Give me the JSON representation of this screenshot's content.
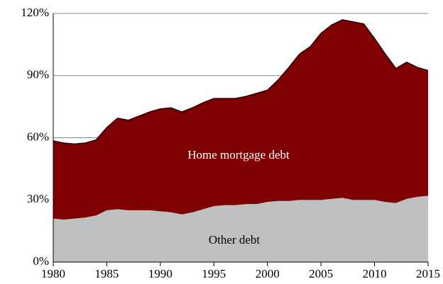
{
  "chart_data": {
    "type": "stacked_area",
    "x": [
      1980,
      1981,
      1982,
      1983,
      1984,
      1985,
      1986,
      1987,
      1988,
      1989,
      1990,
      1991,
      1992,
      1993,
      1994,
      1995,
      1996,
      1997,
      1998,
      1999,
      2000,
      2001,
      2002,
      2003,
      2004,
      2005,
      2006,
      2007,
      2008,
      2009,
      2010,
      2011,
      2012,
      2013,
      2014,
      2015
    ],
    "series": [
      {
        "name": "Other debt",
        "color": "#c0c0c0",
        "values": [
          21,
          20.5,
          21,
          21.5,
          22.5,
          25,
          25.5,
          25,
          25,
          25,
          24.5,
          24,
          23,
          24,
          25.5,
          27,
          27.5,
          27.5,
          28,
          28,
          29,
          29.5,
          29.5,
          30,
          30,
          30,
          30.5,
          31,
          30,
          30,
          30,
          29,
          28.5,
          30.5,
          31.5,
          32
        ]
      },
      {
        "name": "Home mortgage debt",
        "color": "#7f0000",
        "values": [
          37.5,
          37,
          36,
          36,
          36.5,
          40,
          44,
          43.5,
          45.5,
          47.5,
          49.5,
          50.5,
          49.5,
          50.5,
          51.5,
          52,
          51.5,
          51.5,
          52,
          53.5,
          54,
          58.5,
          64.5,
          70.5,
          74,
          80.5,
          84,
          86,
          86,
          85,
          78,
          71.5,
          65,
          66,
          62.5,
          60.5
        ]
      }
    ],
    "xlim": [
      1980,
      2015
    ],
    "xticks": [
      1980,
      1985,
      1990,
      1995,
      2000,
      2005,
      2010,
      2015
    ],
    "ylim": [
      0,
      120
    ],
    "yticks": [
      {
        "value": 0,
        "label": "0%"
      },
      {
        "value": 30,
        "label": "30%"
      },
      {
        "value": 60,
        "label": "60%"
      },
      {
        "value": 90,
        "label": "90%"
      },
      {
        "value": 120,
        "label": "120%"
      }
    ],
    "grid": true
  }
}
